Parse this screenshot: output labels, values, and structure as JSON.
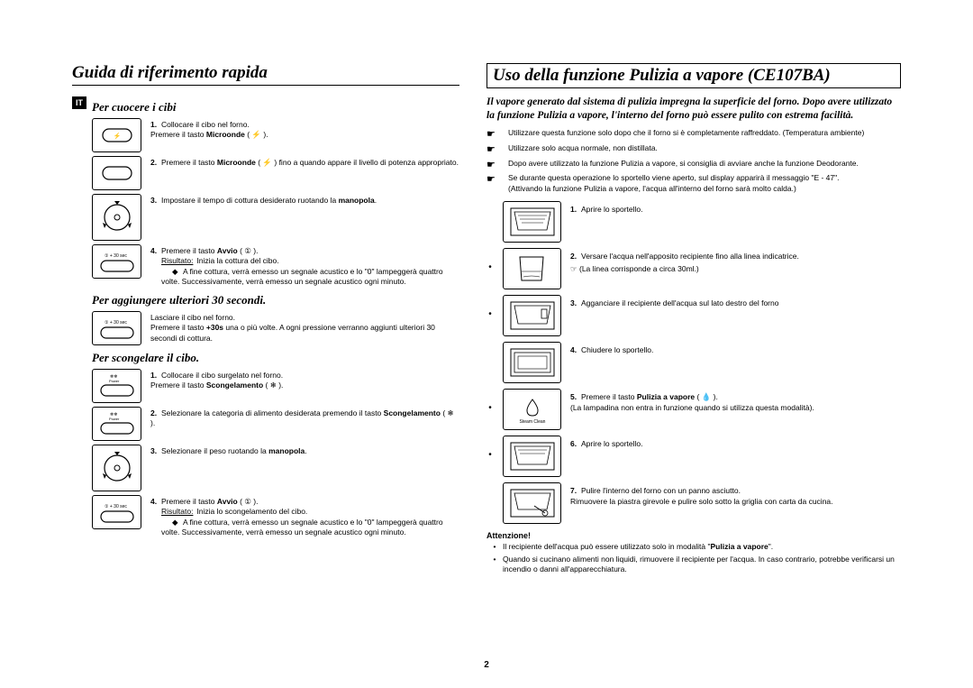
{
  "page_number": "2",
  "left": {
    "main_heading": "Guida di riferimento rapida",
    "lang_badge": "IT",
    "section1": {
      "heading": "Per cuocere i cibi",
      "steps": [
        "Collocare il cibo nel forno.\nPremere il tasto <b>Microonde</b> ( ⚡ ).",
        "Premere il tasto <b>Microonde</b> ( ⚡ ) fino a quando appare il livello di potenza appropriato.",
        "Impostare il tempo di cottura desiderato ruotando la <b>manopola</b>.",
        "Premere il tasto <b>Avvio</b> ( ① )."
      ],
      "result_label": "Risultato:",
      "result_text": "Inizia la cottura del cibo.",
      "bullet_text": "A fine cottura, verrà emesso un segnale acustico e lo \"0\" lampeggerà quattro volte. Successivamente, verrà emesso un segnale acustico ogni minuto."
    },
    "section2": {
      "heading": "Per aggiungere ulteriori 30 secondi.",
      "text": "Lasciare il cibo nel forno.\nPremere il tasto <b>+30s</b> una o più volte. A ogni pressione verranno aggiunti ulteriori 30 secondi di cottura."
    },
    "section3": {
      "heading": "Per scongelare il cibo.",
      "steps": [
        "Collocare il cibo surgelato nel forno.\nPremere il tasto <b>Scongelamento</b> ( ❄ ).",
        "Selezionare la categoria di alimento desiderata premendo il tasto <b>Scongelamento</b> ( ❄ ).",
        "Selezionare il peso ruotando la <b>manopola</b>.",
        "Premere il tasto <b>Avvio</b> ( ① )."
      ],
      "result_label": "Risultato:",
      "result_text": "Inizia lo scongelamento del cibo.",
      "bullet_text": "A fine cottura, verrà emesso un segnale acustico e lo \"0\" lampeggerà quattro volte. Successivamente, verrà emesso un segnale acustico ogni minuto."
    }
  },
  "right": {
    "main_heading": "Uso della funzione Pulizia a vapore (CE107BA)",
    "intro": "Il vapore generato dal sistema di pulizia impregna la superficie del forno. Dopo avere utilizzato la funzione Pulizia a vapore, l'interno del forno può essere pulito con estrema facilità.",
    "notes": [
      "Utilizzare questa funzione solo dopo che il forno si è completamente raffreddato. (Temperatura ambiente)",
      "Utilizzare solo acqua normale, non distillata.",
      "Dopo avere utilizzato la funzione Pulizia a vapore, si consiglia di avviare anche la funzione Deodorante.",
      "Se durante questa operazione lo sportello viene aperto, sul display apparirà il messaggio \"E - 47\".\n(Attivando la funzione Pulizia a vapore, l'acqua all'interno del forno sarà molto calda.)"
    ],
    "steps": [
      {
        "n": "1.",
        "text": "Aprire lo sportello."
      },
      {
        "n": "2.",
        "text": "Versare l'acqua nell'apposito recipiente fino alla linea indicatrice.",
        "extra": "(La linea corrisponde a circa 30ml.)"
      },
      {
        "n": "3.",
        "text": "Agganciare il recipiente dell'acqua sul lato destro del forno"
      },
      {
        "n": "4.",
        "text": "Chiudere lo sportello."
      },
      {
        "n": "5.",
        "text": "Premere il tasto <b>Pulizia a vapore</b> ( 💧 ).",
        "extra": "(La lampadina non entra in funzione quando si utilizza questa modalità)."
      },
      {
        "n": "6.",
        "text": "Aprire lo sportello."
      },
      {
        "n": "7.",
        "text": "Pulire l'interno del forno con un panno asciutto.\nRimuovere la piastra girevole e pulire solo sotto la griglia con carta da cucina."
      }
    ],
    "attn_heading": "Attenzione!",
    "attn": [
      "Il recipiente dell'acqua può essere utilizzato solo in modalità \"<b>Pulizia a vapore</b>\".",
      "Quando si cucinano alimenti non liquidi, rimuovere il recipiente per l'acqua. In caso contrario, potrebbe verificarsi un incendio o danni all'apparecchiatura."
    ]
  }
}
